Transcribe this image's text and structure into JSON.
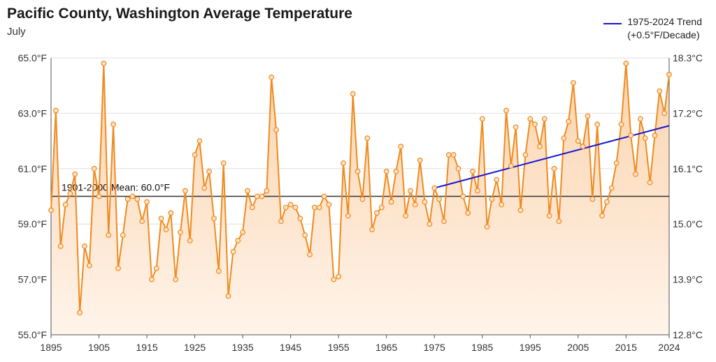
{
  "header": {
    "title": "Pacific County, Washington Average Temperature",
    "subtitle": "July"
  },
  "legend": {
    "trend_line1": "1975-2024 Trend",
    "trend_line2": "(+0.5°F/Decade)"
  },
  "mean_label": "1901-2000 Mean: 60.0°F",
  "colors": {
    "series": "#f08a1e",
    "area_top": "#fbd3ad",
    "area_bottom": "#fff4ea",
    "trend": "#1515d6",
    "mean": "#333333",
    "gridline": "#e0e0e0"
  },
  "chart_data": {
    "type": "line",
    "title": "Pacific County, Washington Average Temperature",
    "subtitle": "July",
    "x_label": "",
    "y_label": "",
    "x_ticks": [
      "1895",
      "1905",
      "1915",
      "1925",
      "1935",
      "1945",
      "1955",
      "1965",
      "1975",
      "1985",
      "1995",
      "2005",
      "2015",
      "2024"
    ],
    "y_left_ticks": [
      "55.0°F",
      "57.0°F",
      "59.0°F",
      "61.0°F",
      "63.0°F",
      "65.0°F"
    ],
    "y_right_ticks": [
      "12.8°C",
      "13.9°C",
      "15.0°C",
      "16.1°C",
      "17.2°C",
      "18.3°C"
    ],
    "x_range": [
      1895,
      2024
    ],
    "y_range_f": [
      55,
      65
    ],
    "grid": "horizontal",
    "legend_position": "top-right",
    "mean": {
      "label": "1901-2000 Mean: 60.0°F",
      "value": 60.0
    },
    "trend": {
      "label": "1975-2024 Trend (+0.5°F/Decade)",
      "start": [
        1975,
        60.3
      ],
      "end": [
        2024,
        62.55
      ]
    },
    "series": [
      {
        "x": [
          1895,
          1896,
          1897,
          1898,
          1899,
          1900,
          1901,
          1902,
          1903,
          1904,
          1905,
          1906,
          1907,
          1908,
          1909,
          1910,
          1911,
          1912,
          1913,
          1914,
          1915,
          1916,
          1917,
          1918,
          1919,
          1920,
          1921,
          1922,
          1923,
          1924,
          1925,
          1926,
          1927,
          1928,
          1929,
          1930,
          1931,
          1932,
          1933,
          1934,
          1935,
          1936,
          1937,
          1938,
          1939,
          1940,
          1941,
          1942,
          1943,
          1944,
          1945,
          1946,
          1947,
          1948,
          1949,
          1950,
          1951,
          1952,
          1953,
          1954,
          1955,
          1956,
          1957,
          1958,
          1959,
          1960,
          1961,
          1962,
          1963,
          1964,
          1965,
          1966,
          1967,
          1968,
          1969,
          1970,
          1971,
          1972,
          1973,
          1974,
          1975,
          1976,
          1977,
          1978,
          1979,
          1980,
          1981,
          1982,
          1983,
          1984,
          1985,
          1986,
          1987,
          1988,
          1989,
          1990,
          1991,
          1992,
          1993,
          1994,
          1995,
          1996,
          1997,
          1998,
          1999,
          2000,
          2001,
          2002,
          2003,
          2004,
          2005,
          2006,
          2007,
          2008,
          2009,
          2010,
          2011,
          2012,
          2013,
          2014,
          2015,
          2016,
          2017,
          2018,
          2019,
          2020,
          2021,
          2022,
          2023,
          2024
        ],
        "y": [
          59.5,
          63.1,
          58.2,
          59.7,
          60.1,
          60.8,
          55.8,
          58.2,
          57.5,
          61.0,
          60.0,
          64.8,
          58.6,
          62.6,
          57.4,
          58.6,
          59.9,
          60.0,
          59.9,
          59.1,
          59.8,
          57.0,
          57.4,
          59.2,
          58.8,
          59.4,
          57.0,
          58.7,
          60.2,
          58.4,
          61.5,
          62.0,
          60.3,
          60.9,
          59.2,
          57.3,
          61.2,
          56.4,
          58.0,
          58.4,
          58.7,
          60.2,
          59.6,
          60.0,
          60.0,
          60.2,
          64.3,
          62.4,
          59.1,
          59.6,
          59.7,
          59.6,
          59.2,
          58.6,
          57.9,
          59.6,
          59.6,
          60.0,
          59.7,
          57.0,
          57.1,
          61.2,
          59.3,
          63.7,
          60.9,
          59.9,
          62.1,
          58.8,
          59.4,
          59.6,
          60.9,
          59.8,
          60.9,
          61.8,
          59.3,
          60.2,
          59.7,
          61.3,
          59.8,
          59.0,
          60.3,
          59.9,
          59.1,
          61.5,
          61.5,
          61.0,
          60.0,
          59.4,
          60.9,
          60.2,
          62.8,
          58.9,
          59.9,
          60.6,
          59.7,
          63.1,
          61.1,
          62.5,
          59.5,
          61.5,
          62.8,
          62.6,
          61.8,
          62.8,
          59.3,
          61.0,
          59.1,
          62.1,
          62.7,
          64.1,
          62.0,
          61.8,
          62.9,
          59.9,
          62.6,
          59.3,
          59.8,
          60.3,
          61.2,
          62.6,
          64.8,
          62.2,
          60.8,
          62.8,
          62.1,
          60.5,
          62.2,
          63.8,
          63.0,
          64.4
        ]
      }
    ]
  }
}
